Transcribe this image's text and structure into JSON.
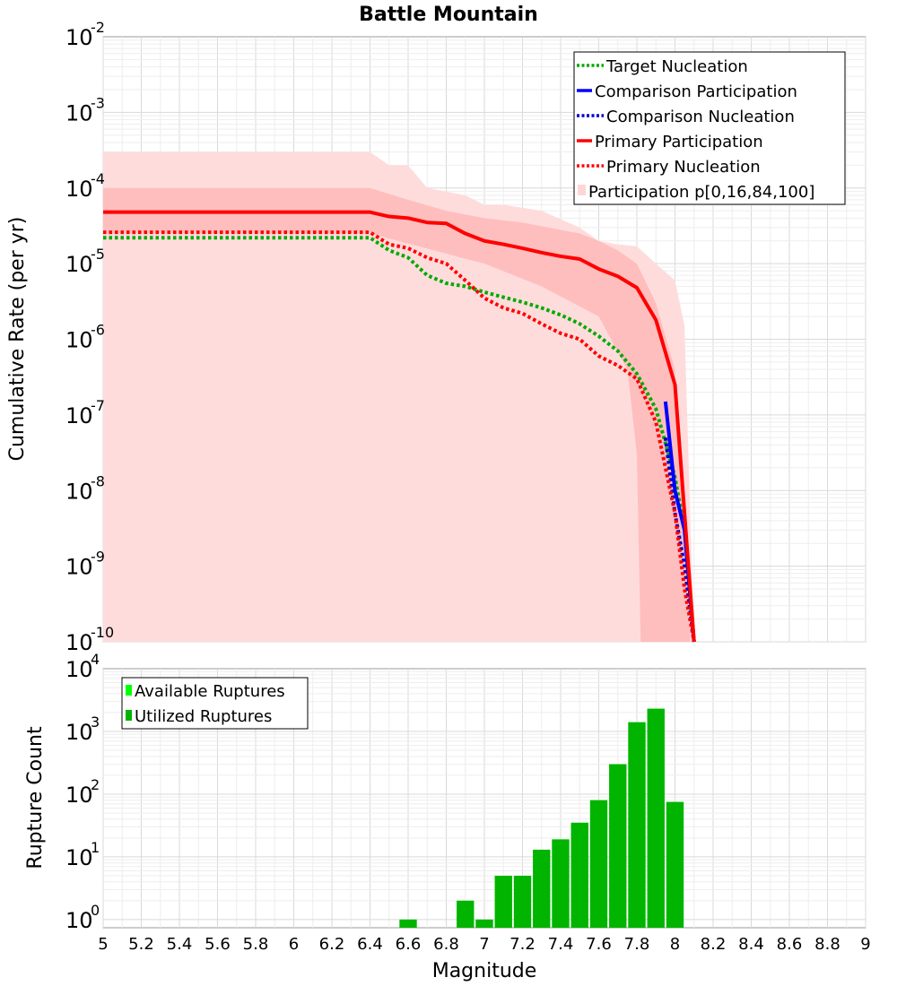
{
  "chart_data": [
    {
      "type": "line",
      "title": "Battle Mountain",
      "xlabel": "",
      "ylabel": "Cumulative Rate (per yr)",
      "xlim": [
        5,
        9
      ],
      "ylim_log10": [
        -10,
        -2
      ],
      "y_ticks": [
        {
          "base": "10",
          "exp": "-2"
        },
        {
          "base": "10",
          "exp": "-3"
        },
        {
          "base": "10",
          "exp": "-4"
        },
        {
          "base": "10",
          "exp": "-5"
        },
        {
          "base": "10",
          "exp": "-6"
        },
        {
          "base": "10",
          "exp": "-7"
        },
        {
          "base": "10",
          "exp": "-8"
        },
        {
          "base": "10",
          "exp": "-9"
        },
        {
          "base": "10",
          "exp": "-10"
        }
      ],
      "legend": {
        "position": "top-right",
        "entries": [
          "Target Nucleation",
          "Comparison Participation",
          "Comparison Nucleation",
          "Primary Participation",
          "Primary Nucleation",
          "Participation p[0,16,84,100]"
        ]
      },
      "bands": [
        {
          "name": "Participation p[0,100]",
          "color": "#ffdcdc",
          "lower": [
            [
              5,
              1e-10
            ],
            [
              8.1,
              1e-10
            ]
          ],
          "upper": [
            [
              5,
              0.0003
            ],
            [
              6.4,
              0.0003
            ],
            [
              6.5,
              0.0002
            ],
            [
              6.6,
              0.0002
            ],
            [
              6.7,
              0.0001
            ],
            [
              6.8,
              9e-05
            ],
            [
              6.9,
              8e-05
            ],
            [
              7,
              6e-05
            ],
            [
              7.1,
              6e-05
            ],
            [
              7.3,
              5e-05
            ],
            [
              7.5,
              3e-05
            ],
            [
              7.6,
              2e-05
            ],
            [
              7.7,
              1.8e-05
            ],
            [
              7.8,
              1.7e-05
            ],
            [
              7.9,
              1e-05
            ],
            [
              8,
              6e-06
            ],
            [
              8.05,
              1.5e-06
            ],
            [
              8.1,
              1e-10
            ]
          ]
        },
        {
          "name": "Participation p[16,84]",
          "color": "#ffbebe",
          "lower": [
            [
              5,
              2.5e-05
            ],
            [
              6.4,
              2.5e-05
            ],
            [
              7,
              1e-05
            ],
            [
              7.3,
              5e-06
            ],
            [
              7.6,
              2e-06
            ],
            [
              7.75,
              4e-07
            ],
            [
              7.8,
              3e-08
            ],
            [
              7.82,
              1e-10
            ],
            [
              8.02,
              1e-10
            ]
          ],
          "upper": [
            [
              5,
              0.0001
            ],
            [
              6.4,
              0.0001
            ],
            [
              6.6,
              7e-05
            ],
            [
              6.8,
              5e-05
            ],
            [
              7,
              4e-05
            ],
            [
              7.2,
              3.5e-05
            ],
            [
              7.5,
              2.5e-05
            ],
            [
              7.6,
              2e-05
            ],
            [
              7.7,
              1.5e-05
            ],
            [
              7.8,
              1e-05
            ],
            [
              7.9,
              3e-06
            ],
            [
              8,
              4e-07
            ],
            [
              8.05,
              2e-09
            ],
            [
              8.08,
              1e-10
            ]
          ]
        }
      ],
      "series": [
        {
          "name": "Target Nucleation",
          "color": "#00aa00",
          "dash": "dotted",
          "points": [
            [
              5,
              2.2e-05
            ],
            [
              6.4,
              2.2e-05
            ],
            [
              6.5,
              1.5e-05
            ],
            [
              6.6,
              1.2e-05
            ],
            [
              6.7,
              7e-06
            ],
            [
              6.8,
              5.5e-06
            ],
            [
              6.9,
              5e-06
            ],
            [
              7,
              4.2e-06
            ],
            [
              7.1,
              3.6e-06
            ],
            [
              7.2,
              3.1e-06
            ],
            [
              7.3,
              2.6e-06
            ],
            [
              7.4,
              2.1e-06
            ],
            [
              7.5,
              1.6e-06
            ],
            [
              7.6,
              1.1e-06
            ],
            [
              7.7,
              7e-07
            ],
            [
              7.8,
              3.5e-07
            ],
            [
              7.9,
              1.2e-07
            ],
            [
              8,
              1.5e-08
            ],
            [
              8.05,
              3e-09
            ],
            [
              8.1,
              1e-10
            ]
          ]
        },
        {
          "name": "Comparison Participation",
          "color": "#0000ff",
          "dash": "solid",
          "points": [
            [
              7.95,
              1.5e-07
            ],
            [
              8,
              1e-08
            ],
            [
              8.05,
              3e-09
            ],
            [
              8.1,
              1e-10
            ]
          ]
        },
        {
          "name": "Comparison Nucleation",
          "color": "#0000cc",
          "dash": "dotted",
          "points": [
            [
              7.95,
              5e-08
            ],
            [
              8,
              5e-09
            ],
            [
              8.05,
              1e-09
            ],
            [
              8.1,
              1e-10
            ]
          ]
        },
        {
          "name": "Primary Participation",
          "color": "#ff0000",
          "dash": "solid",
          "points": [
            [
              5,
              4.8e-05
            ],
            [
              6.4,
              4.8e-05
            ],
            [
              6.5,
              4.2e-05
            ],
            [
              6.6,
              4e-05
            ],
            [
              6.7,
              3.5e-05
            ],
            [
              6.8,
              3.4e-05
            ],
            [
              6.9,
              2.5e-05
            ],
            [
              7,
              2e-05
            ],
            [
              7.1,
              1.8e-05
            ],
            [
              7.2,
              1.6e-05
            ],
            [
              7.3,
              1.4e-05
            ],
            [
              7.4,
              1.25e-05
            ],
            [
              7.5,
              1.15e-05
            ],
            [
              7.6,
              8.5e-06
            ],
            [
              7.7,
              6.8e-06
            ],
            [
              7.8,
              4.8e-06
            ],
            [
              7.9,
              1.8e-06
            ],
            [
              8,
              2.5e-07
            ],
            [
              8.05,
              5e-09
            ],
            [
              8.1,
              1e-10
            ]
          ]
        },
        {
          "name": "Primary Nucleation",
          "color": "#ff0000",
          "dash": "dotted",
          "points": [
            [
              5,
              2.6e-05
            ],
            [
              6.4,
              2.6e-05
            ],
            [
              6.5,
              1.8e-05
            ],
            [
              6.6,
              1.6e-05
            ],
            [
              6.7,
              1.2e-05
            ],
            [
              6.8,
              1e-05
            ],
            [
              6.9,
              6e-06
            ],
            [
              7,
              3.5e-06
            ],
            [
              7.1,
              2.6e-06
            ],
            [
              7.2,
              2.2e-06
            ],
            [
              7.3,
              1.6e-06
            ],
            [
              7.4,
              1.2e-06
            ],
            [
              7.5,
              1e-06
            ],
            [
              7.6,
              6e-07
            ],
            [
              7.7,
              4.5e-07
            ],
            [
              7.8,
              3e-07
            ],
            [
              7.9,
              8e-08
            ],
            [
              8,
              5e-09
            ],
            [
              8.05,
              5e-10
            ],
            [
              8.1,
              1e-10
            ]
          ]
        }
      ]
    },
    {
      "type": "bar",
      "title": "",
      "xlabel": "Magnitude",
      "ylabel": "Rupture Count",
      "xlim": [
        5,
        9
      ],
      "ylim_log10": [
        -0.13,
        4
      ],
      "x_ticks": [
        "5",
        "5.2",
        "5.4",
        "5.6",
        "5.8",
        "6",
        "6.2",
        "6.4",
        "6.6",
        "6.8",
        "7",
        "7.2",
        "7.4",
        "7.6",
        "7.8",
        "8",
        "8.2",
        "8.4",
        "8.6",
        "8.8",
        "9"
      ],
      "y_ticks": [
        {
          "base": "10",
          "exp": "0"
        },
        {
          "base": "10",
          "exp": "1"
        },
        {
          "base": "10",
          "exp": "2"
        },
        {
          "base": "10",
          "exp": "3"
        },
        {
          "base": "10",
          "exp": "4"
        }
      ],
      "legend": {
        "position": "top-left",
        "entries": [
          "Available Ruptures",
          "Utilized Ruptures"
        ]
      },
      "bar_width": 0.1,
      "series": [
        {
          "name": "Available Ruptures",
          "color": "#00ff00",
          "x": [
            6.6,
            6.7,
            6.8,
            6.9,
            7.0,
            7.1,
            7.2,
            7.3,
            7.4,
            7.5,
            7.6,
            7.7,
            7.8,
            7.9,
            8.0,
            8.1
          ],
          "values": [
            1,
            0,
            0,
            2,
            1,
            5,
            5,
            13,
            19,
            35,
            80,
            300,
            1400,
            2300,
            75,
            0
          ]
        },
        {
          "name": "Utilized Ruptures",
          "color": "#00b400",
          "x": [
            6.6,
            6.7,
            6.8,
            6.9,
            7.0,
            7.1,
            7.2,
            7.3,
            7.4,
            7.5,
            7.6,
            7.7,
            7.8,
            7.9,
            8.0,
            8.1
          ],
          "values": [
            1,
            0,
            0,
            2,
            1,
            5,
            5,
            13,
            19,
            35,
            80,
            300,
            1400,
            2300,
            75,
            0
          ]
        }
      ]
    }
  ]
}
